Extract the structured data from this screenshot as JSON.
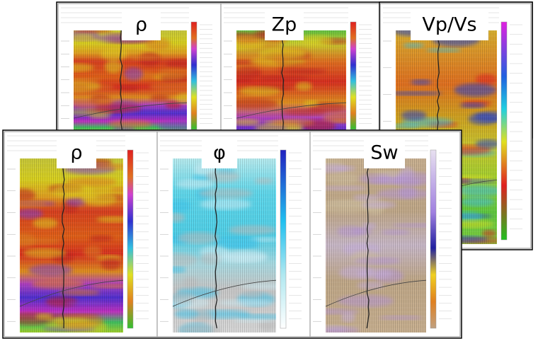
{
  "labels": {
    "top": [
      "ρ",
      "Zp",
      "Vp/Vs"
    ],
    "bottom": [
      "ρ",
      "φ",
      "Sw"
    ]
  }
}
